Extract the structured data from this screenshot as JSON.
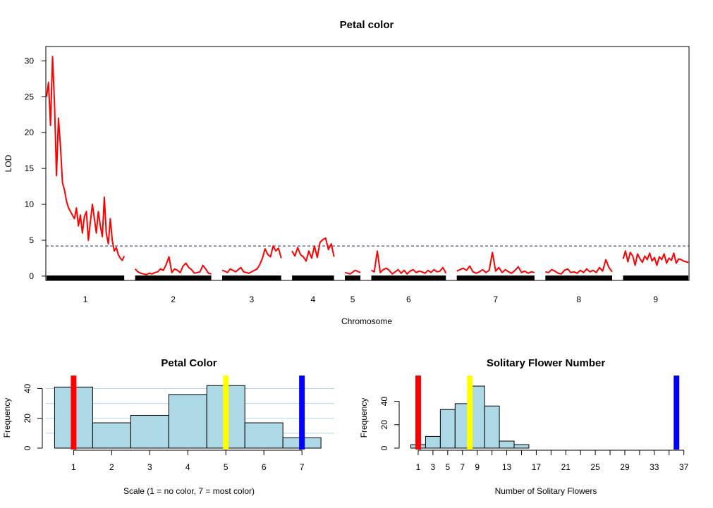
{
  "chart_data": [
    {
      "type": "line",
      "title": "Petal color",
      "xlabel": "Chromosome",
      "ylabel": "LOD",
      "ylim": [
        -0.6,
        32
      ],
      "yticks": [
        0,
        5,
        10,
        15,
        20,
        25,
        30
      ],
      "threshold": 4.2,
      "line_color": "#ff0000",
      "threshold_color": "#1f2a6b",
      "chromosomes": [
        {
          "label": "1",
          "length": 100,
          "y": [
            25,
            27,
            21,
            30.6,
            24,
            14,
            22,
            18,
            13,
            12,
            10.5,
            9.5,
            9,
            8.5,
            8,
            9.5,
            7,
            8.5,
            6,
            8.3,
            9,
            5,
            7.5,
            10,
            8,
            6,
            9,
            7,
            5.5,
            11,
            6,
            4.5,
            8,
            5,
            3.5,
            4,
            3,
            2.5,
            2.2,
            2.8
          ]
        },
        {
          "label": "2",
          "length": 98,
          "y": [
            1,
            0.6,
            0.4,
            0.3,
            0.2,
            0.4,
            0.3,
            0.5,
            0.6,
            1,
            0.8,
            1.6,
            2.7,
            0.5,
            1,
            0.8,
            0.5,
            1.4,
            1.8,
            1.2,
            0.9,
            0.4,
            0.5,
            0.6,
            1.5,
            1,
            0.4,
            0.3
          ]
        },
        {
          "label": "3",
          "length": 76,
          "y": [
            0.8,
            0.7,
            0.5,
            1,
            0.8,
            0.6,
            0.9,
            1.2,
            0.6,
            0.5,
            0.4,
            0.6,
            0.8,
            1,
            1.6,
            2.5,
            3.8,
            3,
            2.7,
            4.2,
            3.5,
            3.9,
            2.5
          ]
        },
        {
          "label": "4",
          "length": 54,
          "y": [
            3.5,
            2.8,
            4,
            3,
            2.7,
            2.1,
            3.5,
            2.5,
            4.2,
            2.6,
            4.7,
            5.1,
            5.3,
            3.7,
            4.5,
            2.7
          ]
        },
        {
          "label": "5",
          "length": 20,
          "y": [
            0.5,
            0.3,
            0.8,
            0.5
          ]
        },
        {
          "label": "6",
          "length": 96,
          "y": [
            0.8,
            0.6,
            3.5,
            0.5,
            0.9,
            1.1,
            0.8,
            0.3,
            0.6,
            0.9,
            0.4,
            0.8,
            0.3,
            0.7,
            0.9,
            0.5,
            0.7,
            0.6,
            0.4,
            0.8,
            0.5,
            0.9,
            0.6,
            0.7,
            1.2,
            0.4
          ]
        },
        {
          "label": "7",
          "length": 100,
          "y": [
            0.7,
            0.9,
            1.1,
            0.8,
            1.4,
            0.6,
            0.4,
            0.6,
            0.9,
            0.5,
            0.8,
            3.3,
            0.7,
            1.2,
            0.5,
            0.9,
            0.6,
            0.4,
            0.8,
            1.3,
            0.5,
            0.7,
            0.4,
            0.6,
            0.5
          ]
        },
        {
          "label": "8",
          "length": 86,
          "y": [
            0.6,
            0.5,
            0.9,
            0.7,
            0.4,
            0.3,
            0.8,
            1,
            0.5,
            0.6,
            0.4,
            0.8,
            0.5,
            1,
            0.6,
            0.8,
            0.5,
            1.2,
            0.7,
            2.3,
            1.2,
            0.6
          ]
        },
        {
          "label": "9",
          "length": 84,
          "y": [
            2.4,
            3.5,
            2,
            3.3,
            2.8,
            1.5,
            3.1,
            2.4,
            1.9,
            2.8,
            2.3,
            3.2,
            2.1,
            2.6,
            1.5,
            2.7,
            2.3,
            3.1,
            1.8,
            2.5,
            2.2,
            3.2,
            1.8,
            2.4,
            2.3,
            2.1,
            2,
            1.9
          ]
        }
      ]
    },
    {
      "type": "bar",
      "title": "Petal Color",
      "xlabel": "Scale (1 = no color, 7 = most color)",
      "ylabel": "Frequency",
      "bin_starts": [
        0.5,
        1.5,
        2.5,
        3.5,
        4.5,
        5.5,
        6.5
      ],
      "bin_width": 1,
      "values": [
        41,
        17,
        22,
        36,
        42,
        17,
        7
      ],
      "xlim": [
        0.27,
        7.85
      ],
      "ylim": [
        0,
        44
      ],
      "xticks": [
        1,
        2,
        3,
        4,
        5,
        6,
        7
      ],
      "yticks": [
        0,
        20,
        40
      ],
      "gridlines": [
        10,
        20,
        30,
        40
      ],
      "bar_color": "#add8e6",
      "markers": [
        {
          "x": 1,
          "color": "#ff0000"
        },
        {
          "x": 5,
          "color": "#ffff00"
        },
        {
          "x": 7,
          "color": "#0000ff"
        }
      ]
    },
    {
      "type": "bar",
      "title": "Solitary Flower Number",
      "xlabel": "Number of Solitary Flowers",
      "ylabel": "Frequency",
      "bin_starts": [
        0,
        2,
        4,
        6,
        8,
        10,
        12,
        14
      ],
      "bin_width": 2,
      "values": [
        3,
        10,
        33,
        38,
        53,
        36,
        6,
        3
      ],
      "xlim": [
        -1.1,
        37.7
      ],
      "ylim": [
        0,
        56
      ],
      "xticks": [
        1,
        3,
        5,
        7,
        9,
        13,
        17,
        21,
        25,
        29,
        33,
        37
      ],
      "minor_xticks": [
        11,
        15,
        19,
        23,
        27,
        31,
        35
      ],
      "yticks": [
        0,
        20,
        40
      ],
      "bar_color": "#add8e6",
      "markers": [
        {
          "x": 1,
          "color": "#ff0000"
        },
        {
          "x": 8,
          "color": "#ffff00"
        },
        {
          "x": 36,
          "color": "#0000ff"
        }
      ]
    }
  ]
}
